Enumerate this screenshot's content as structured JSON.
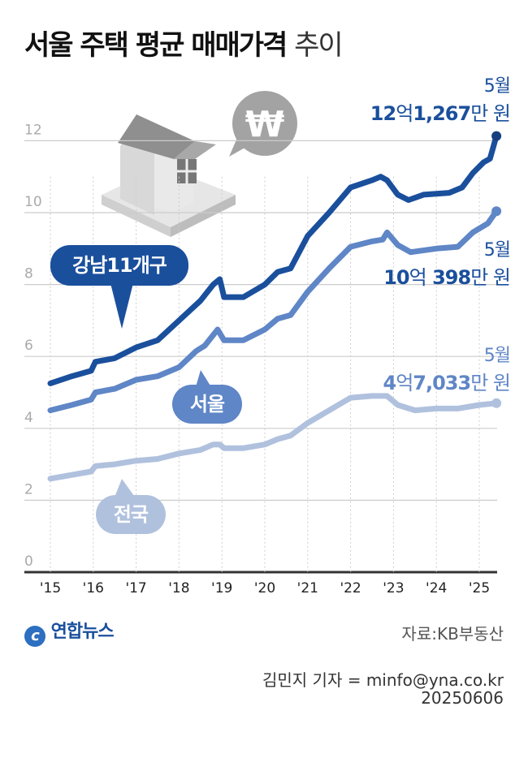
{
  "title": {
    "bold": "서울 주택 평균 매매가격",
    "normal": "추이"
  },
  "source": "자료:KB부동산",
  "byline": "김민지 기자 = minfo@yna.co.kr",
  "date": "20250606",
  "logo": "연합뉴스",
  "colors": {
    "gangnam": "#1a4f9c",
    "seoul": "#5f86c6",
    "national": "#b0c1de",
    "grid": "#cccccc"
  },
  "chart_data": {
    "type": "line",
    "ylim": [
      0,
      12
    ],
    "yticks": [
      "0",
      "2",
      "4",
      "6",
      "8",
      "10",
      "12"
    ],
    "xticks": [
      "'15",
      "'16",
      "'17",
      "'18",
      "'19",
      "'20",
      "'21",
      "'22",
      "'23",
      "'24",
      "'25"
    ],
    "xlim": [
      2014.8,
      2025.6
    ],
    "grid": true,
    "series": [
      {
        "name": "강남11개구",
        "key": "gangnam",
        "end_month": "5월",
        "end_label": {
          "a": "12",
          "b": "억",
          "c": "1,267",
          "d": "만 원"
        },
        "points": [
          [
            2015,
            5.25
          ],
          [
            2015.5,
            5.45
          ],
          [
            2015.95,
            5.6
          ],
          [
            2016.05,
            5.85
          ],
          [
            2016.5,
            5.95
          ],
          [
            2017,
            6.25
          ],
          [
            2017.5,
            6.45
          ],
          [
            2018,
            7.0
          ],
          [
            2018.5,
            7.55
          ],
          [
            2018.8,
            8.0
          ],
          [
            2018.95,
            8.15
          ],
          [
            2019.05,
            7.65
          ],
          [
            2019.5,
            7.65
          ],
          [
            2020,
            8.0
          ],
          [
            2020.3,
            8.35
          ],
          [
            2020.6,
            8.45
          ],
          [
            2021,
            9.35
          ],
          [
            2021.5,
            10.0
          ],
          [
            2022,
            10.7
          ],
          [
            2022.5,
            10.9
          ],
          [
            2022.7,
            11.0
          ],
          [
            2022.85,
            10.9
          ],
          [
            2023.1,
            10.5
          ],
          [
            2023.35,
            10.35
          ],
          [
            2023.7,
            10.5
          ],
          [
            2024.3,
            10.55
          ],
          [
            2024.6,
            10.7
          ],
          [
            2024.85,
            11.1
          ],
          [
            2025.1,
            11.4
          ],
          [
            2025.25,
            11.5
          ],
          [
            2025.4,
            12.13
          ]
        ]
      },
      {
        "name": "서울",
        "key": "seoul",
        "end_month": "5월",
        "end_label": {
          "a": "10",
          "b": "억",
          "c": "398",
          "d": "만 원"
        },
        "points": [
          [
            2015,
            4.5
          ],
          [
            2015.5,
            4.65
          ],
          [
            2015.95,
            4.8
          ],
          [
            2016.05,
            5.0
          ],
          [
            2016.5,
            5.1
          ],
          [
            2017,
            5.35
          ],
          [
            2017.5,
            5.45
          ],
          [
            2018,
            5.7
          ],
          [
            2018.4,
            6.15
          ],
          [
            2018.6,
            6.3
          ],
          [
            2018.9,
            6.75
          ],
          [
            2019.05,
            6.45
          ],
          [
            2019.5,
            6.45
          ],
          [
            2020,
            6.75
          ],
          [
            2020.3,
            7.05
          ],
          [
            2020.6,
            7.15
          ],
          [
            2021,
            7.8
          ],
          [
            2021.5,
            8.45
          ],
          [
            2022,
            9.05
          ],
          [
            2022.5,
            9.2
          ],
          [
            2022.75,
            9.25
          ],
          [
            2022.85,
            9.45
          ],
          [
            2023.1,
            9.1
          ],
          [
            2023.4,
            8.9
          ],
          [
            2024,
            9.0
          ],
          [
            2024.5,
            9.05
          ],
          [
            2024.85,
            9.45
          ],
          [
            2025.2,
            9.7
          ],
          [
            2025.4,
            10.04
          ]
        ]
      },
      {
        "name": "전국",
        "key": "national",
        "end_month": "5월",
        "end_label": {
          "a": "4",
          "b": "억",
          "c": "7,033",
          "d": "만 원"
        },
        "points": [
          [
            2015,
            2.6
          ],
          [
            2015.95,
            2.8
          ],
          [
            2016.05,
            2.95
          ],
          [
            2016.5,
            3.0
          ],
          [
            2017,
            3.1
          ],
          [
            2017.5,
            3.15
          ],
          [
            2018,
            3.3
          ],
          [
            2018.5,
            3.4
          ],
          [
            2018.8,
            3.55
          ],
          [
            2018.95,
            3.55
          ],
          [
            2019.05,
            3.45
          ],
          [
            2019.5,
            3.45
          ],
          [
            2020,
            3.55
          ],
          [
            2020.3,
            3.7
          ],
          [
            2020.6,
            3.8
          ],
          [
            2021,
            4.15
          ],
          [
            2021.5,
            4.5
          ],
          [
            2022,
            4.85
          ],
          [
            2022.5,
            4.9
          ],
          [
            2022.85,
            4.9
          ],
          [
            2023.1,
            4.65
          ],
          [
            2023.5,
            4.5
          ],
          [
            2024,
            4.55
          ],
          [
            2024.5,
            4.55
          ],
          [
            2025,
            4.65
          ],
          [
            2025.4,
            4.7
          ]
        ]
      }
    ]
  }
}
